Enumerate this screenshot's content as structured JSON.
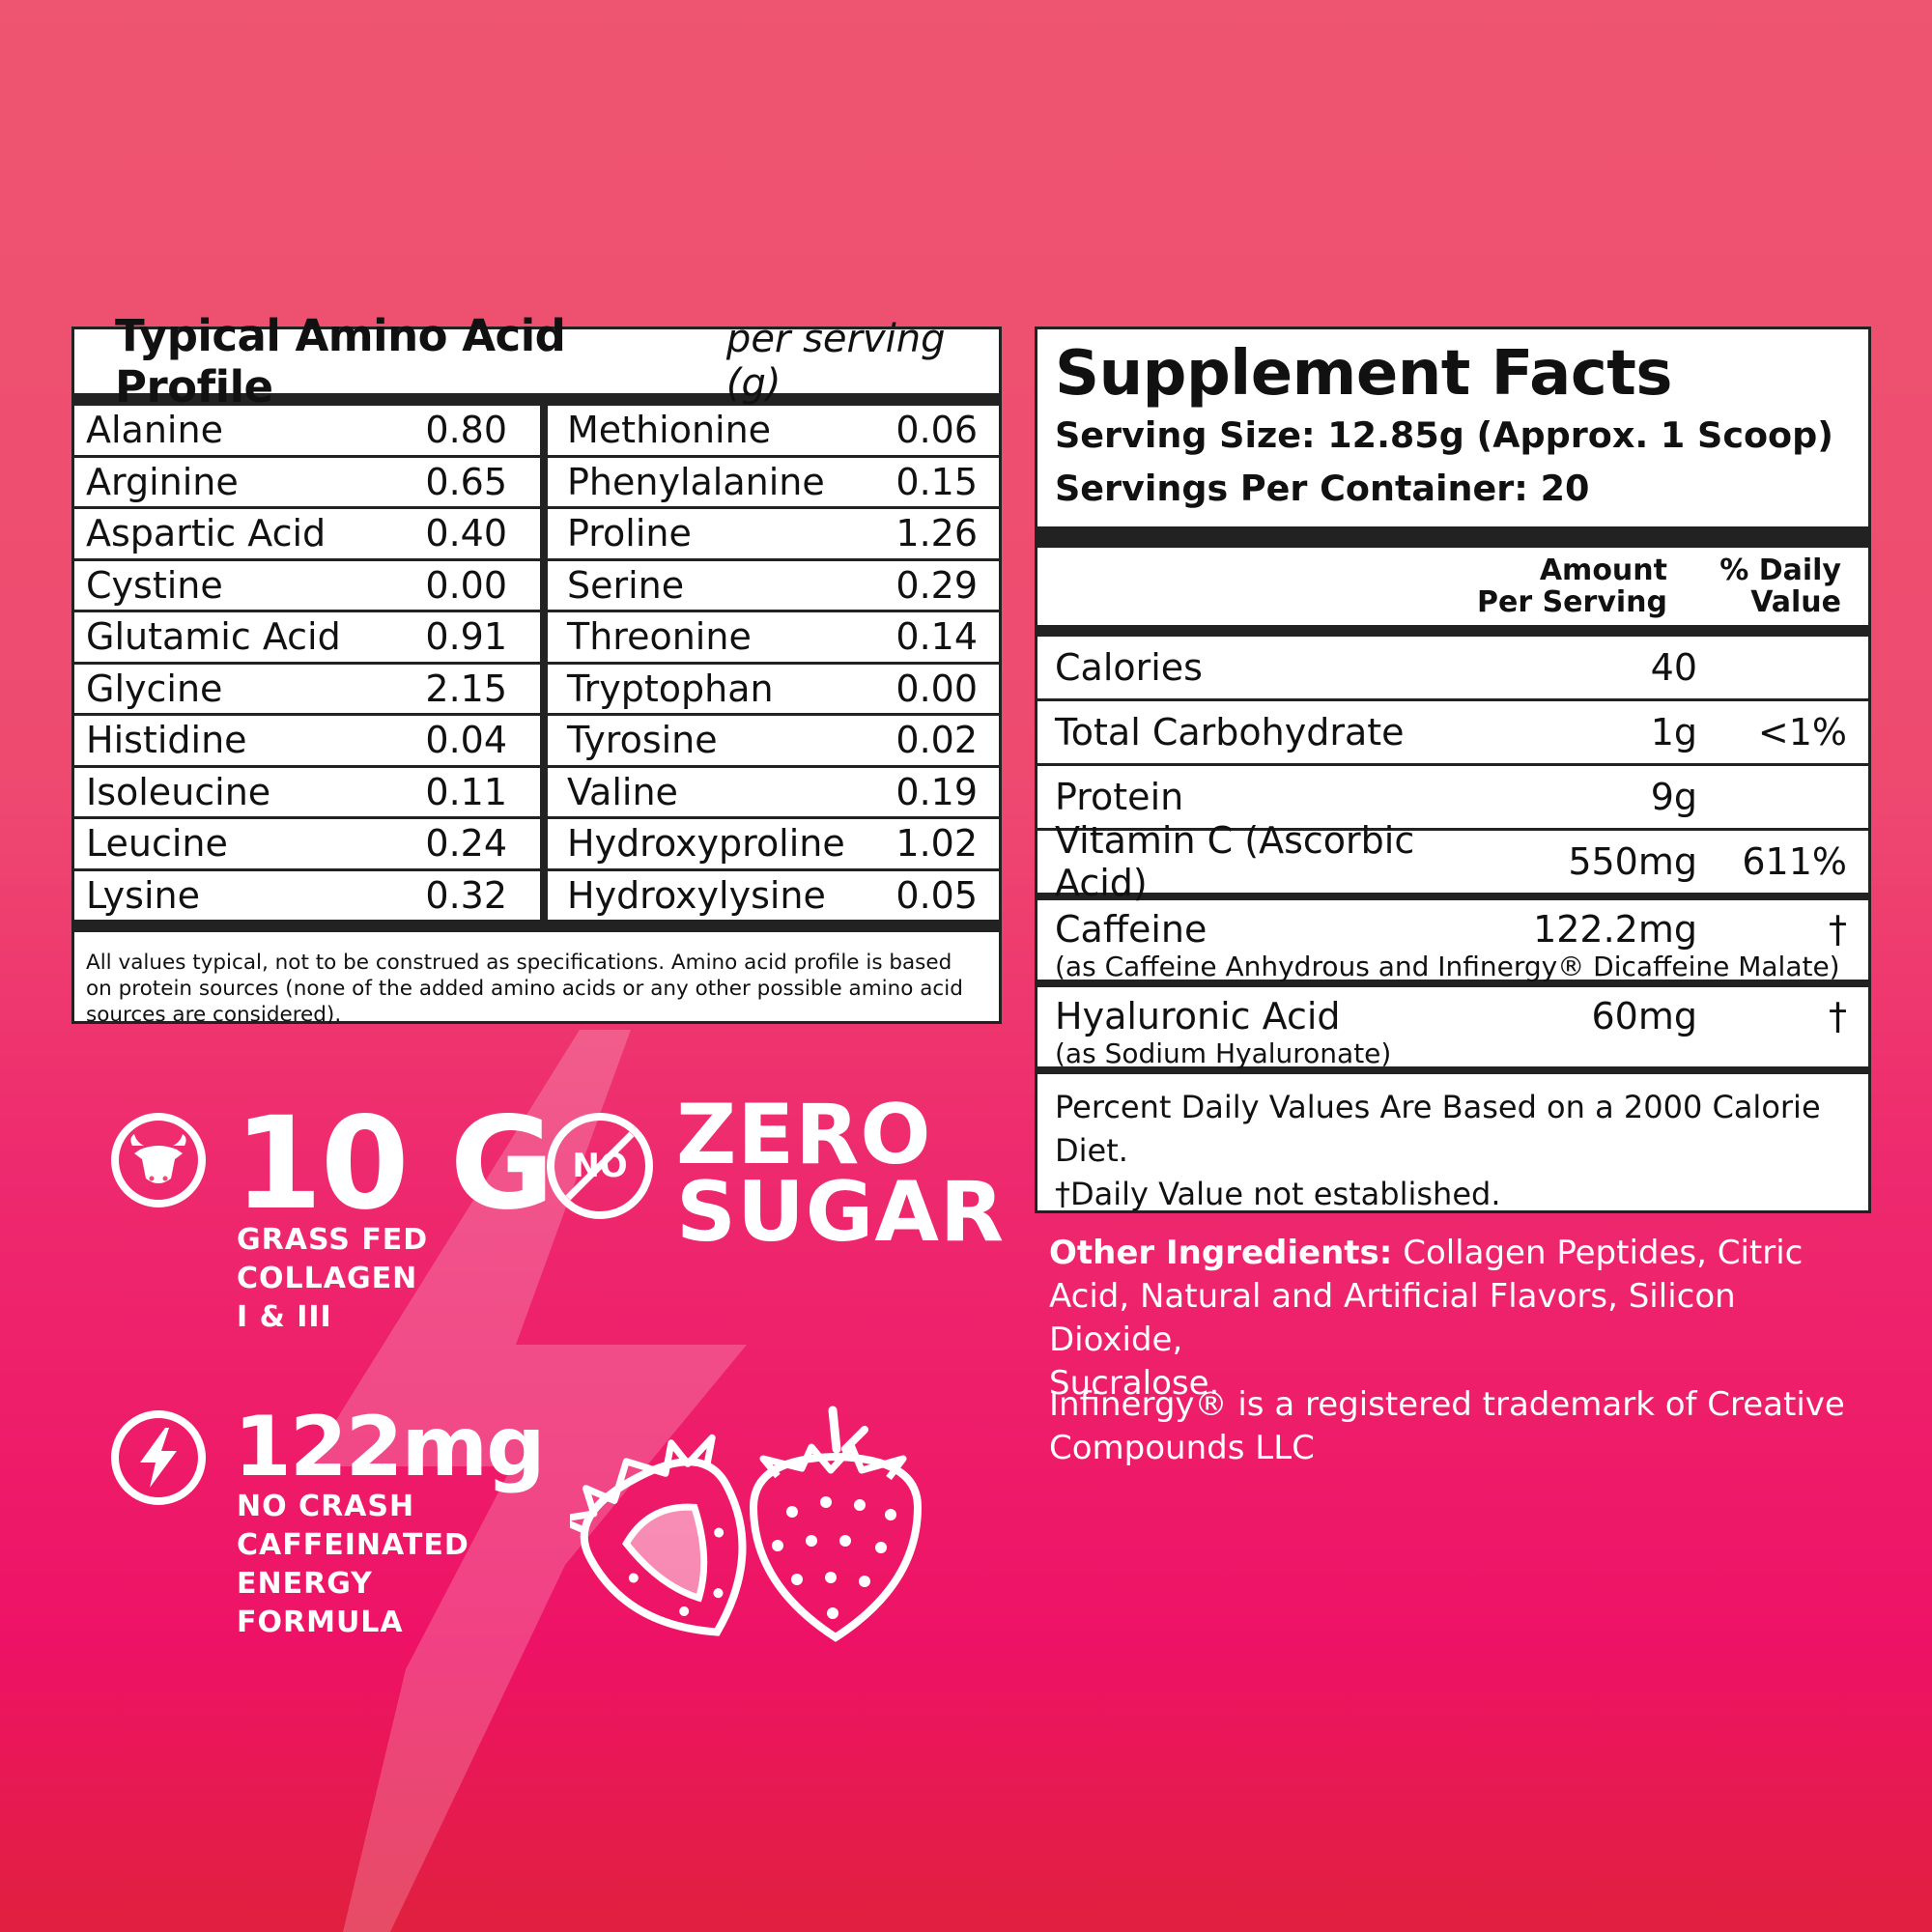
{
  "amino_profile": {
    "title": "Typical Amino Acid Profile",
    "subtitle": "per serving (g)",
    "left": [
      {
        "name": "Alanine",
        "value": "0.80"
      },
      {
        "name": "Arginine",
        "value": "0.65"
      },
      {
        "name": "Aspartic Acid",
        "value": "0.40"
      },
      {
        "name": "Cystine",
        "value": "0.00"
      },
      {
        "name": "Glutamic Acid",
        "value": "0.91"
      },
      {
        "name": "Glycine",
        "value": "2.15"
      },
      {
        "name": "Histidine",
        "value": "0.04"
      },
      {
        "name": "Isoleucine",
        "value": "0.11"
      },
      {
        "name": "Leucine",
        "value": "0.24"
      },
      {
        "name": "Lysine",
        "value": "0.32"
      }
    ],
    "right": [
      {
        "name": "Methionine",
        "value": "0.06"
      },
      {
        "name": "Phenylalanine",
        "value": "0.15"
      },
      {
        "name": "Proline",
        "value": "1.26"
      },
      {
        "name": "Serine",
        "value": "0.29"
      },
      {
        "name": "Threonine",
        "value": "0.14"
      },
      {
        "name": "Tryptophan",
        "value": "0.00"
      },
      {
        "name": "Tyrosine",
        "value": "0.02"
      },
      {
        "name": "Valine",
        "value": "0.19"
      },
      {
        "name": "Hydroxyproline",
        "value": "1.02"
      },
      {
        "name": "Hydroxylysine",
        "value": "0.05"
      }
    ],
    "note_lines": [
      "All values typical, not to be construed as specifications. Amino acid profile is based",
      "on protein sources (none of the added amino acids or any other possible amino acid",
      "sources are considered)."
    ]
  },
  "supplement_facts": {
    "title": "Supplement Facts",
    "serving_size": "Serving Size: 12.85g (Approx. 1 Scoop)",
    "servings_per_container": "Servings Per Container: 20",
    "head_amount": [
      "Amount",
      "Per Serving"
    ],
    "head_dv": [
      "% Daily",
      "Value"
    ],
    "rows": [
      {
        "name": "Calories",
        "amount": "40",
        "dv": ""
      },
      {
        "name": "Total Carbohydrate",
        "amount": "1g",
        "dv": "<1%"
      },
      {
        "name": "Protein",
        "amount": "9g",
        "dv": ""
      },
      {
        "name": "Vitamin C (Ascorbic Acid)",
        "amount": "550mg",
        "dv": "611%"
      }
    ],
    "rows2": [
      {
        "name": "Caffeine",
        "amount": "122.2mg",
        "dv": "†",
        "sub": "(as Caffeine Anhydrous and Infinergy® Dicaffeine Malate)"
      },
      {
        "name": "Hyaluronic Acid",
        "amount": "60mg",
        "dv": "†",
        "sub": "(as Sodium Hyaluronate)"
      }
    ],
    "footer_lines": [
      "Percent Daily Values Are Based on a 2000 Calorie Diet.",
      "†Daily Value not established."
    ]
  },
  "other_ingredients": {
    "label": "Other Ingredients:",
    "text_lines": [
      " Collagen Peptides, Citric",
      "Acid, Natural and Artificial Flavors, Silicon Dioxide,",
      "Sucralose."
    ]
  },
  "trademark_lines": [
    "Infinergy® is a registered trademark of Creative",
    "Compounds LLC"
  ],
  "claims": {
    "collagen": {
      "big": "10 G",
      "lines": [
        "GRASS FED",
        "COLLAGEN",
        "I & III"
      ],
      "icon": "cow-icon"
    },
    "sugar": {
      "badge": "NO",
      "big_lines": [
        "ZERO",
        "SUGAR"
      ],
      "icon": "no-sign-icon"
    },
    "caffeine": {
      "big": "122mg",
      "lines": [
        "NO CRASH",
        "CAFFEINATED",
        "ENERGY",
        "FORMULA"
      ],
      "icon": "lightning-bolt-icon"
    }
  },
  "colors": {
    "background_top": "#ee5570",
    "background_bottom": "#e0203e",
    "panel": "#ffffff",
    "ink": "#111111"
  }
}
